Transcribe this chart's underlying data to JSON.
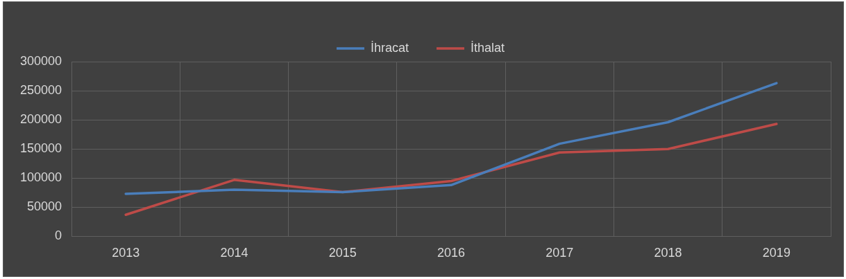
{
  "chart_data": {
    "type": "line",
    "categories": [
      "2013",
      "2014",
      "2015",
      "2016",
      "2017",
      "2018",
      "2019"
    ],
    "series": [
      {
        "name": "İhracat",
        "color": "#4a7ebb",
        "values": [
          73000,
          80000,
          76000,
          88000,
          159000,
          196000,
          263000
        ]
      },
      {
        "name": "İthalat",
        "color": "#be4b48",
        "values": [
          37000,
          97000,
          76000,
          95000,
          144000,
          150000,
          193000
        ]
      }
    ],
    "ylim": [
      0,
      300000
    ],
    "yticks": [
      0,
      50000,
      100000,
      150000,
      200000,
      250000,
      300000
    ],
    "grid": true,
    "legend": "top",
    "marker": "none",
    "line_style": "solid"
  }
}
